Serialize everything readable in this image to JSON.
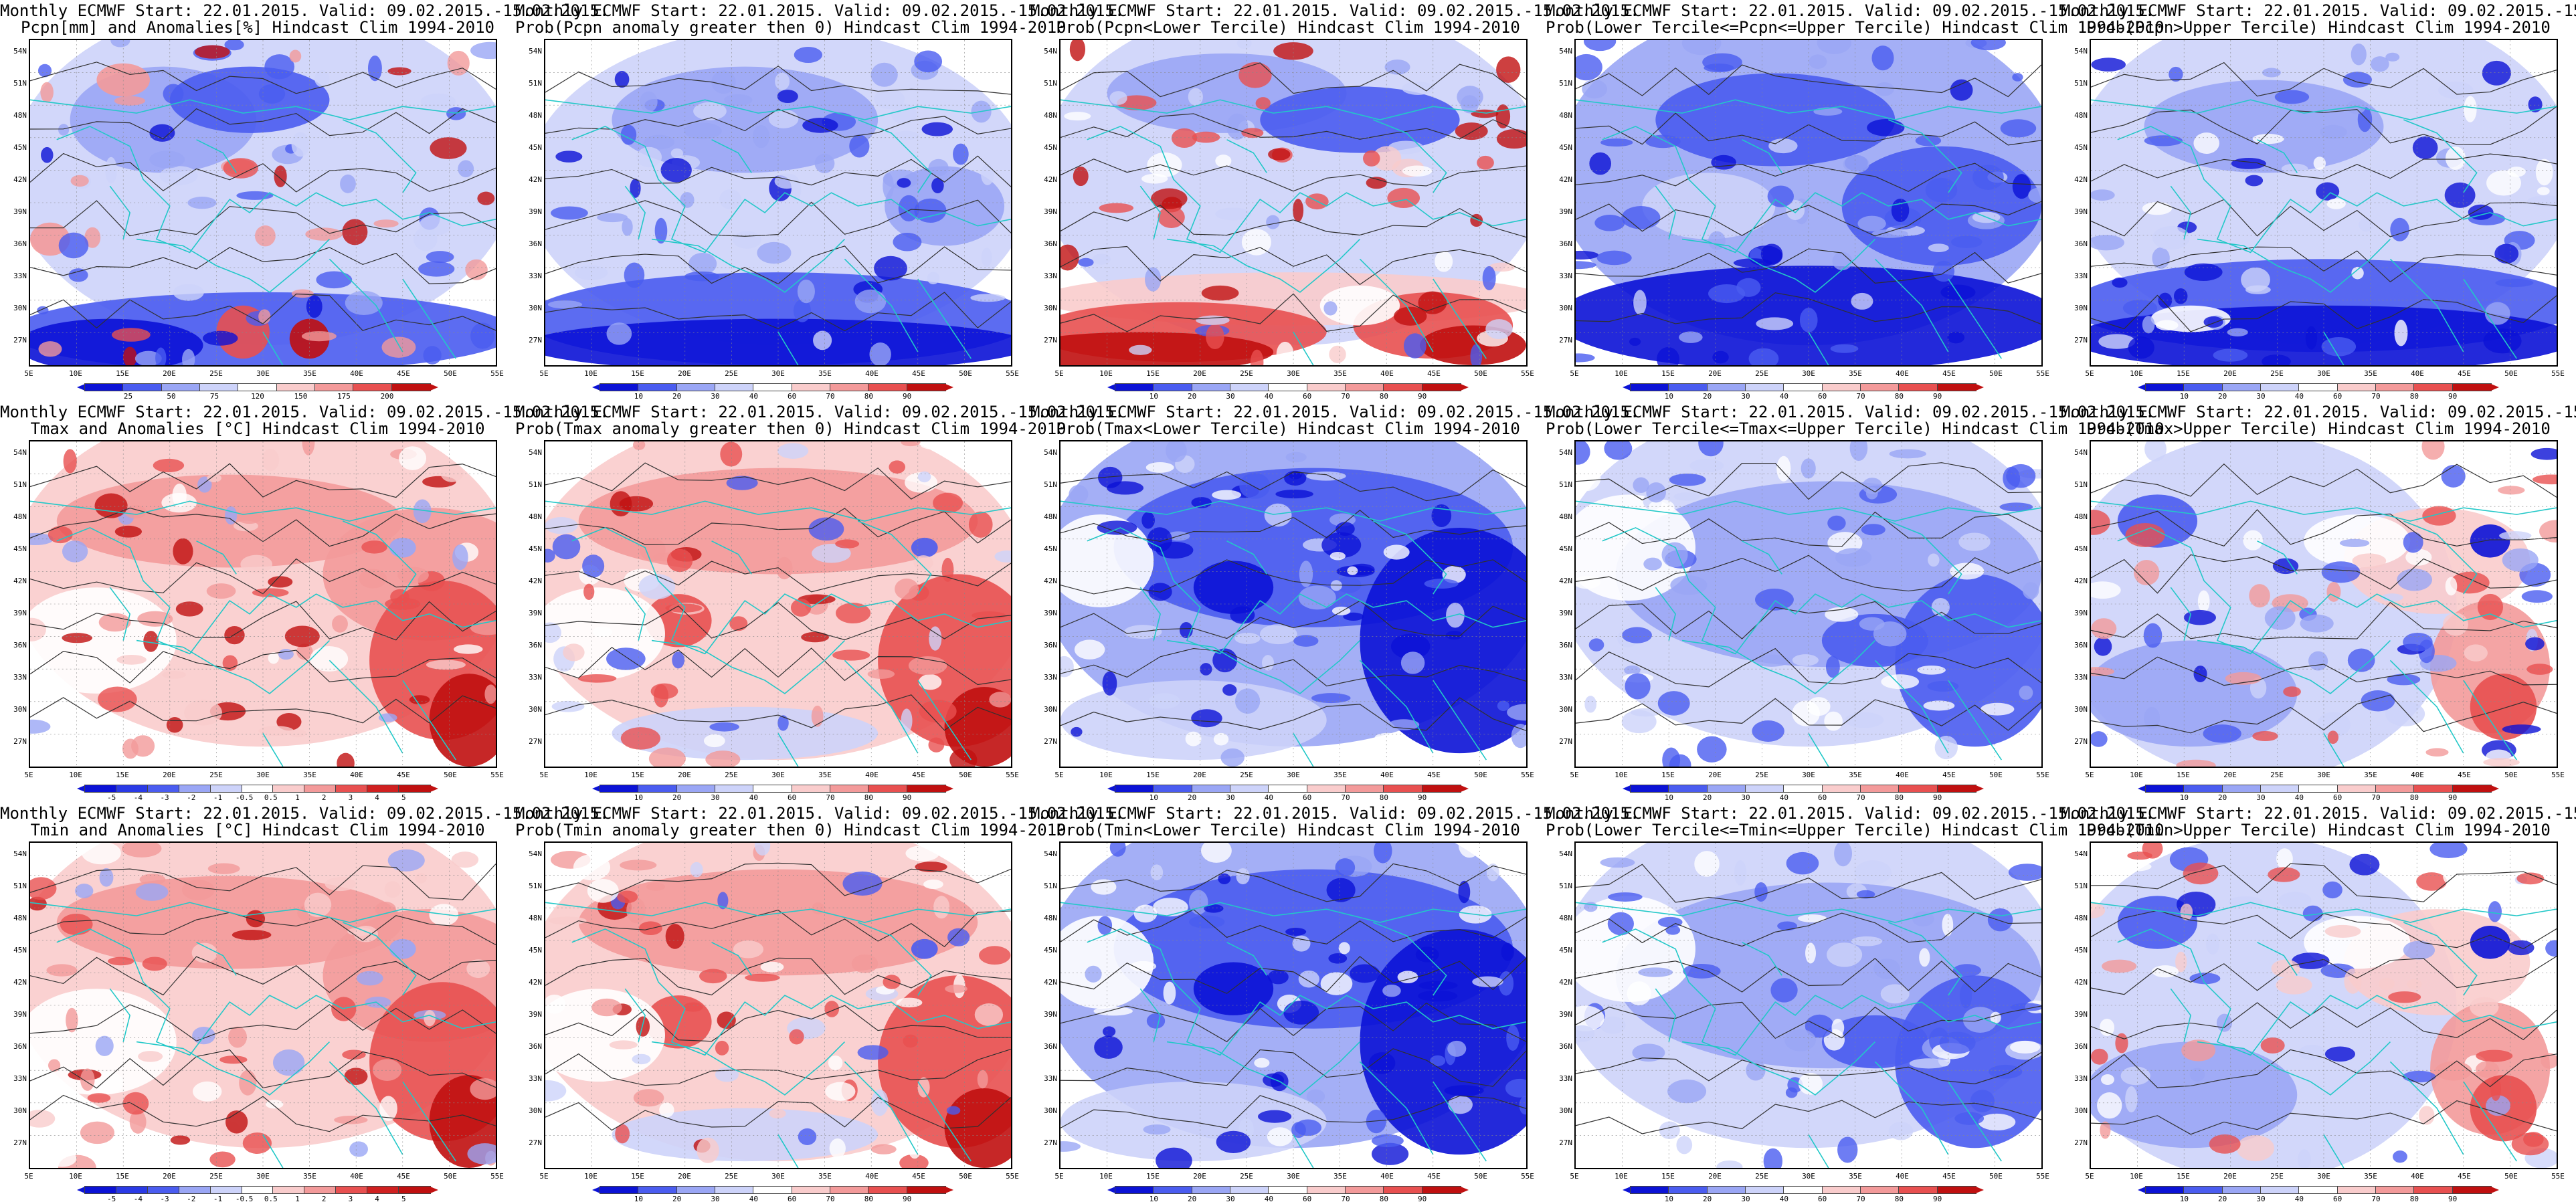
{
  "header": "Monthly ECMWF Start: 22.01.2015. Valid: 09.02.2015.-15.02.2015.",
  "lat_labels": [
    "54N",
    "51N",
    "48N",
    "45N",
    "42N",
    "39N",
    "36N",
    "33N",
    "30N",
    "27N"
  ],
  "lon_labels": [
    "5E",
    "10E",
    "15E",
    "20E",
    "25E",
    "30E",
    "35E",
    "40E",
    "45E",
    "50E",
    "55E"
  ],
  "colorbars": {
    "anom_pcpn": {
      "labels": [
        "25",
        "50",
        "75",
        "120",
        "150",
        "175",
        "200"
      ]
    },
    "anom_temp": {
      "labels": [
        "-5",
        "-4",
        "-3",
        "-2",
        "-1",
        "-0.5",
        "0.5",
        "1",
        "2",
        "3",
        "4",
        "5"
      ]
    },
    "prob": {
      "labels": [
        "10",
        "20",
        "30",
        "40",
        "60",
        "70",
        "80",
        "90"
      ]
    }
  },
  "colors": {
    "blue_dark": "#0b12d6",
    "blue_mid": "#4a5cf0",
    "blue_light": "#9aa6f5",
    "blue_pale": "#cdd3fa",
    "red_pale": "#f9cccc",
    "red_light": "#f39a9a",
    "red_mid": "#e85050",
    "red_dark": "#c01010",
    "coast": "#22c8c8",
    "contour": "#303030"
  },
  "panels": [
    {
      "title2": "Pcpn[mm] and Anomalies[%] Hindcast Clim 1994-2010",
      "scheme": "pcpn_anom",
      "cbar": "anom_pcpn"
    },
    {
      "title2": "Prob(Pcpn anomaly greater then 0) Hindcast Clim 1994-2010",
      "scheme": "pcpn_prob_gt0",
      "cbar": "prob"
    },
    {
      "title2": "Prob(Pcpn<Lower Tercile) Hindcast Clim 1994-2010",
      "scheme": "pcpn_lower",
      "cbar": "prob"
    },
    {
      "title2": "Prob(Lower Tercile<=Pcpn<=Upper Tercile) Hindcast Clim 1994-2010",
      "scheme": "pcpn_mid",
      "cbar": "prob"
    },
    {
      "title2": "Prob(Pcpn>Upper Tercile) Hindcast Clim 1994-2010",
      "scheme": "pcpn_upper",
      "cbar": "prob"
    },
    {
      "title2": "Tmax and Anomalies [°C] Hindcast Clim 1994-2010",
      "scheme": "temp_warm",
      "cbar": "anom_temp"
    },
    {
      "title2": "Prob(Tmax anomaly greater then 0) Hindcast Clim 1994-2010",
      "scheme": "temp_warm_strong",
      "cbar": "prob"
    },
    {
      "title2": "Prob(Tmax<Lower Tercile) Hindcast Clim 1994-2010",
      "scheme": "temp_cold_lower",
      "cbar": "prob"
    },
    {
      "title2": "Prob(Lower Tercile<=Tmax<=Upper Tercile) Hindcast Clim 1994-2010",
      "scheme": "temp_mid",
      "cbar": "prob"
    },
    {
      "title2": "Prob(Tmax>Upper Tercile) Hindcast Clim 1994-2010",
      "scheme": "temp_upper_mixed",
      "cbar": "prob"
    },
    {
      "title2": "Tmin and Anomalies [°C] Hindcast Clim 1994-2010",
      "scheme": "temp_warm",
      "cbar": "anom_temp"
    },
    {
      "title2": "Prob(Tmin anomaly greater then 0) Hindcast Clim 1994-2010",
      "scheme": "temp_warm_strong",
      "cbar": "prob"
    },
    {
      "title2": "Prob(Tmin<Lower Tercile) Hindcast Clim 1994-2010",
      "scheme": "temp_cold_lower",
      "cbar": "prob"
    },
    {
      "title2": "Prob(Lower Tercile<=Tmin<=Upper Tercile) Hindcast Clim 1994-2010",
      "scheme": "temp_mid",
      "cbar": "prob"
    },
    {
      "title2": "Prob(Tmin>Upper Tercile) Hindcast Clim 1994-2010",
      "scheme": "temp_upper_mixed",
      "cbar": "prob"
    }
  ]
}
